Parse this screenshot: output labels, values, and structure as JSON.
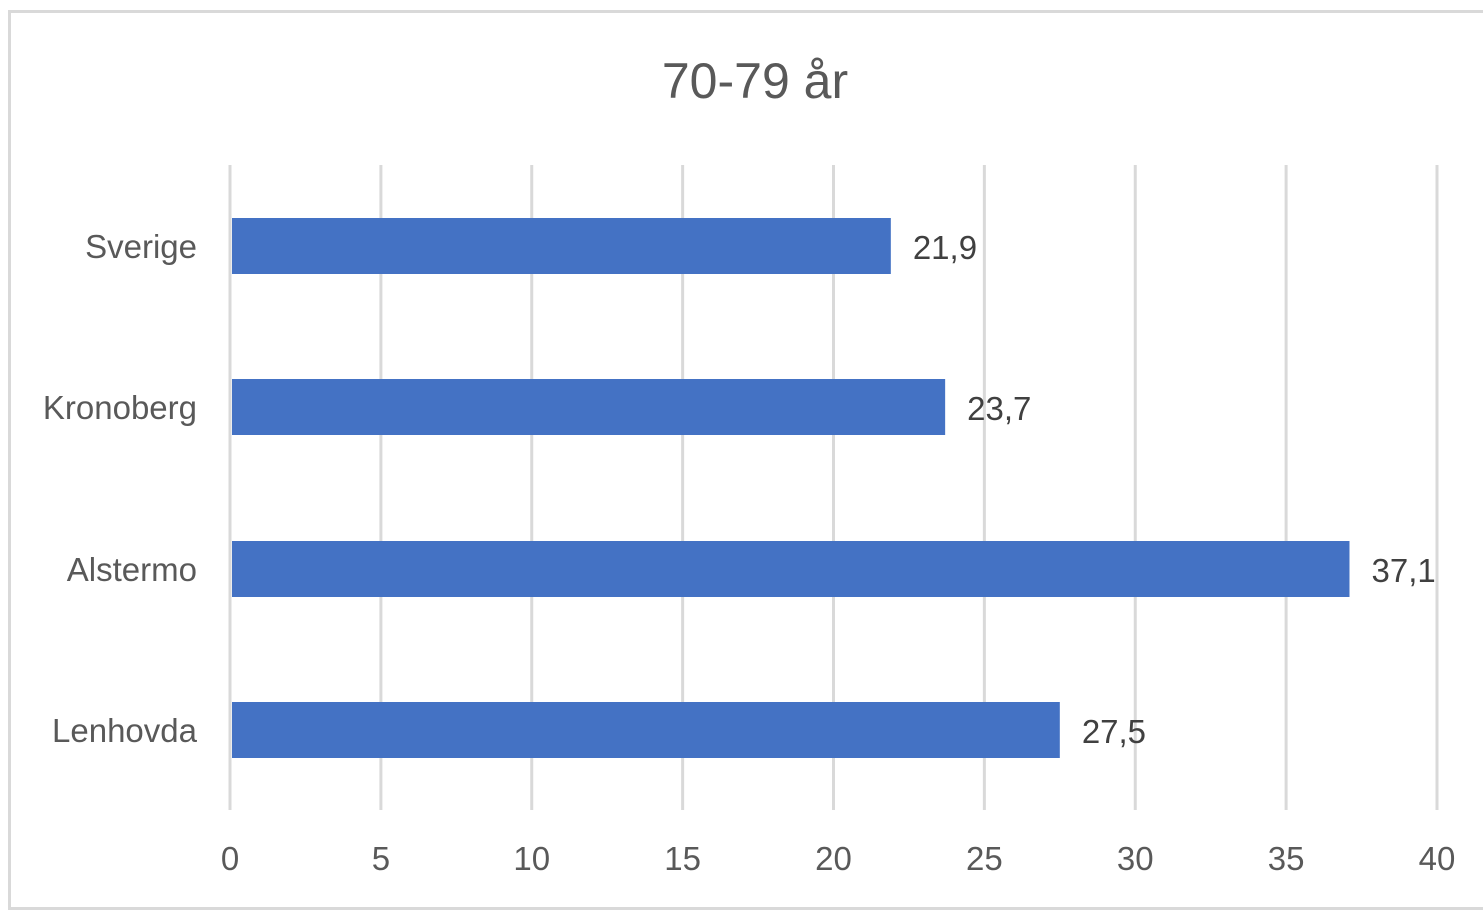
{
  "chart_data": {
    "type": "bar",
    "orientation": "horizontal",
    "title": "70-79 år",
    "categories": [
      "Sverige",
      "Kronoberg",
      "Alstermo",
      "Lenhovda"
    ],
    "values": [
      21.9,
      23.7,
      37.1,
      27.5
    ],
    "data_labels": [
      "21,9",
      "23,7",
      "37,1",
      "27,5"
    ],
    "xlim": [
      0,
      40
    ],
    "x_ticks": [
      0,
      5,
      10,
      15,
      20,
      25,
      30,
      35,
      40
    ],
    "grid": "vertical",
    "bar_color": "#4472c4",
    "grid_color": "#d9d9d9",
    "xlabel": "",
    "ylabel": ""
  }
}
